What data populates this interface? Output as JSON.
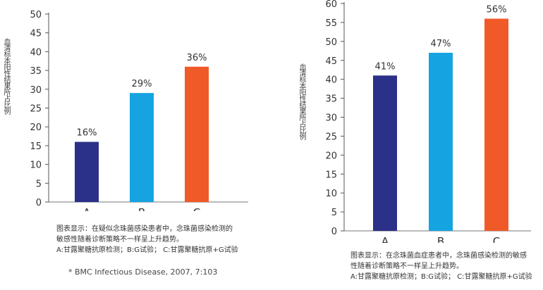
{
  "chart_data": [
    {
      "type": "bar",
      "title": "",
      "ylabel": "血清标本阳性结果所占比例",
      "xlabel": "",
      "categories": [
        "A",
        "B",
        "C"
      ],
      "values": [
        16,
        29,
        36
      ],
      "data_labels": [
        "16%",
        "29%",
        "36%"
      ],
      "colors": [
        "#2B3088",
        "#15A4E1",
        "#F05A28"
      ],
      "ylim": [
        0,
        50
      ],
      "yticks": [
        0,
        5,
        10,
        15,
        20,
        25,
        30,
        35,
        40,
        45,
        50
      ],
      "grid": false,
      "caption": [
        "图表显示：在疑似念珠菌感染患者中，念珠菌感染检测的",
        "敏感性随着诊断策略不一样呈上升趋势。",
        "A:甘露聚糖抗原检测；B:G试验； C:甘露聚糖抗原+G试验"
      ],
      "source": "* BMC Infectious Disease, 2007, 7:103"
    },
    {
      "type": "bar",
      "title": "",
      "ylabel": "血清标本阳性结果所占比例",
      "xlabel": "",
      "categories": [
        "A",
        "B",
        "C"
      ],
      "values": [
        41,
        47,
        56
      ],
      "data_labels": [
        "41%",
        "47%",
        "56%"
      ],
      "colors": [
        "#2B3088",
        "#15A4E1",
        "#F05A28"
      ],
      "ylim": [
        0,
        60
      ],
      "yticks": [
        0,
        5,
        10,
        15,
        20,
        25,
        30,
        35,
        40,
        45,
        50,
        55,
        60
      ],
      "grid": false,
      "caption": [
        "图表显示：在念珠菌血症患者中，念珠菌感染检测的敏感",
        "性随着诊断策略不一样呈上升趋势。",
        "A:甘露聚糖抗原检测；B:G试验； C:甘露聚糖抗原+G试验"
      ]
    }
  ]
}
